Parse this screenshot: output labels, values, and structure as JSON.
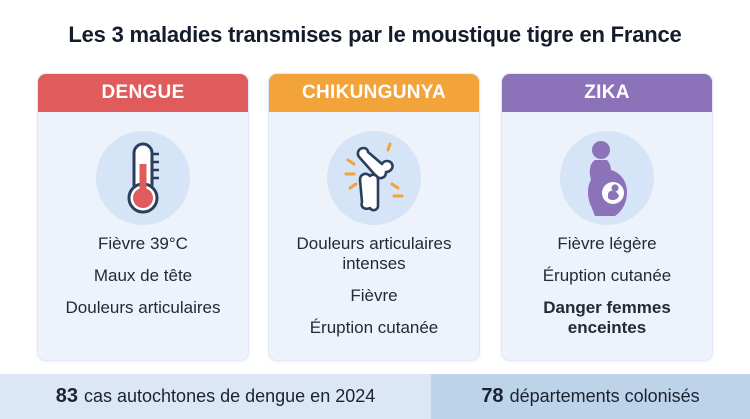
{
  "title": "Les 3 maladies transmises par le moustique tigre en France",
  "colors": {
    "dengue": "#e05b5b",
    "chikungunya": "#f2a33a",
    "zika": "#8c72b8",
    "card_bg": "#eef3fb",
    "icon_bg": "#d5e4f6",
    "footer_left": "#dbe7f4",
    "footer_right": "#bcd3ea"
  },
  "cards": [
    {
      "name": "DENGUE",
      "icon": "thermometer-icon",
      "lines": [
        "Fièvre 39°C",
        "Maux de tête",
        "Douleurs articulaires"
      ]
    },
    {
      "name": "CHIKUNGUNYA",
      "icon": "joint-pain-icon",
      "lines": [
        "Douleurs articulaires",
        "intenses",
        "Fièvre",
        "Éruption cutanée"
      ]
    },
    {
      "name": "ZIKA",
      "icon": "pregnant-woman-icon",
      "lines": [
        "Fièvre légère",
        "Éruption cutanée",
        "Danger femmes",
        "enceintes"
      ]
    }
  ],
  "footer": {
    "left_number": "83",
    "left_text": "cas autochtones de dengue en 2024",
    "right_number": "78",
    "right_text": "départements colonisés"
  }
}
